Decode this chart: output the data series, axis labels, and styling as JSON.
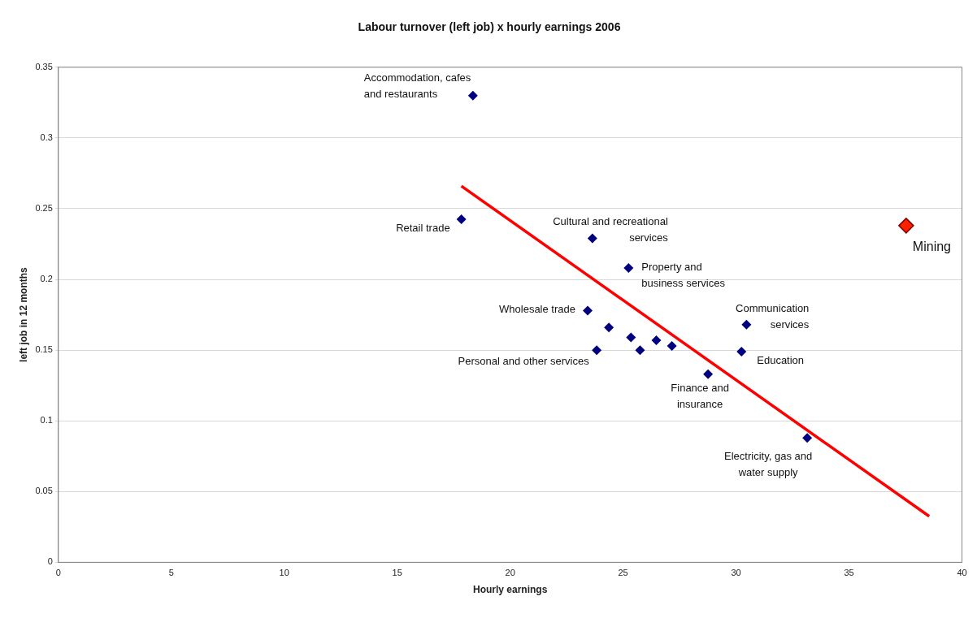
{
  "chart_data": {
    "type": "scatter",
    "title": "Labour turnover (left job) x hourly earnings 2006",
    "xlabel": "Hourly earnings",
    "ylabel": "left job in 12 months",
    "xlim": [
      0,
      40
    ],
    "xticks": [
      0,
      5,
      10,
      15,
      20,
      25,
      30,
      35,
      40
    ],
    "ylim": [
      0,
      0.35
    ],
    "yticks": [
      0,
      0.05,
      0.1,
      0.15,
      0.2,
      0.25,
      0.3,
      0.35
    ],
    "grid": "y",
    "legend": false,
    "series": [
      {
        "color": "#000080",
        "marker": "diamond",
        "x": [
          18.35,
          17.84,
          23.64,
          25.24,
          23.43,
          24.37,
          23.83,
          25.35,
          25.75,
          26.47,
          27.16,
          28.76,
          30.46,
          30.24,
          33.15
        ],
        "values": [
          0.33,
          0.2425,
          0.229,
          0.208,
          0.178,
          0.166,
          0.15,
          0.159,
          0.15,
          0.157,
          0.153,
          0.133,
          0.168,
          0.149,
          0.088
        ]
      },
      {
        "color": "#ff2000",
        "marker": "diamond",
        "x": [
          37.53
        ],
        "values": [
          0.238
        ]
      },
      {
        "type": "line",
        "color": "#ff0000",
        "marker": "none",
        "x": [
          17.84,
          38.55
        ],
        "values": [
          0.266,
          0.0325
        ]
      }
    ],
    "annotations": [
      {
        "text": "Accommodation, cafes\nand restaurants",
        "x": 18.35,
        "y": 0.33
      },
      {
        "text": "Retail trade",
        "x": 17.84,
        "y": 0.2425
      },
      {
        "text": "Cultural and recreational\nservices",
        "x": 23.64,
        "y": 0.229
      },
      {
        "text": "Property and\nbusiness services",
        "x": 25.24,
        "y": 0.208
      },
      {
        "text": "Wholesale trade",
        "x": 23.43,
        "y": 0.178
      },
      {
        "text": "Personal and other services",
        "x": 23.83,
        "y": 0.15
      },
      {
        "text": "Finance and\ninsurance",
        "x": 28.76,
        "y": 0.133
      },
      {
        "text": "Communication\nservices",
        "x": 30.46,
        "y": 0.168
      },
      {
        "text": "Education",
        "x": 30.24,
        "y": 0.149
      },
      {
        "text": "Electricity, gas and\nwater supply",
        "x": 33.15,
        "y": 0.088
      },
      {
        "text": "Mining",
        "x": 37.53,
        "y": 0.238
      }
    ]
  }
}
